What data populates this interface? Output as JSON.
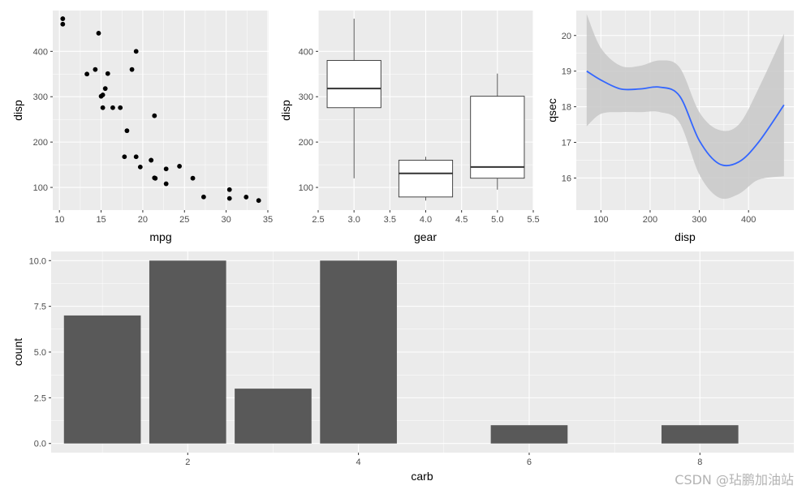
{
  "panel_bg": "#ebebeb",
  "grid_color": "#ffffff",
  "watermark": "CSDN @玷鹏加油站",
  "chart_data": [
    {
      "type": "scatter",
      "xlabel": "mpg",
      "ylabel": "disp",
      "xlim": [
        9.2,
        35.1
      ],
      "ylim": [
        50,
        490
      ],
      "xticks": [
        10,
        15,
        20,
        25,
        30,
        35
      ],
      "yticks": [
        100,
        200,
        300,
        400
      ],
      "point_color": "#000000",
      "points": [
        {
          "x": 21.0,
          "y": 160
        },
        {
          "x": 21.0,
          "y": 160
        },
        {
          "x": 22.8,
          "y": 108
        },
        {
          "x": 21.4,
          "y": 258
        },
        {
          "x": 18.7,
          "y": 360
        },
        {
          "x": 18.1,
          "y": 225
        },
        {
          "x": 14.3,
          "y": 360
        },
        {
          "x": 24.4,
          "y": 146.7
        },
        {
          "x": 22.8,
          "y": 140.8
        },
        {
          "x": 19.2,
          "y": 167.6
        },
        {
          "x": 17.8,
          "y": 167.6
        },
        {
          "x": 16.4,
          "y": 275.8
        },
        {
          "x": 17.3,
          "y": 275.8
        },
        {
          "x": 15.2,
          "y": 275.8
        },
        {
          "x": 10.4,
          "y": 472
        },
        {
          "x": 10.4,
          "y": 460
        },
        {
          "x": 14.7,
          "y": 440
        },
        {
          "x": 32.4,
          "y": 78.7
        },
        {
          "x": 30.4,
          "y": 75.7
        },
        {
          "x": 33.9,
          "y": 71.1
        },
        {
          "x": 21.5,
          "y": 120.1
        },
        {
          "x": 15.5,
          "y": 318
        },
        {
          "x": 15.2,
          "y": 304
        },
        {
          "x": 13.3,
          "y": 350
        },
        {
          "x": 19.2,
          "y": 400
        },
        {
          "x": 27.3,
          "y": 79
        },
        {
          "x": 26.0,
          "y": 120.3
        },
        {
          "x": 30.4,
          "y": 95.1
        },
        {
          "x": 15.8,
          "y": 351
        },
        {
          "x": 19.7,
          "y": 145
        },
        {
          "x": 15.0,
          "y": 301
        },
        {
          "x": 21.4,
          "y": 121
        }
      ]
    },
    {
      "type": "box",
      "xlabel": "gear",
      "ylabel": "disp",
      "xlim": [
        2.5,
        5.5
      ],
      "ylim": [
        50,
        490
      ],
      "xticks": [
        "2.5",
        "3.0",
        "3.5",
        "4.0",
        "4.5",
        "5.0",
        "5.5"
      ],
      "yticks": [
        100,
        200,
        300,
        400
      ],
      "box_width": 0.75,
      "boxes": [
        {
          "x": 3,
          "min": 120.1,
          "q1": 275.8,
          "median": 318,
          "q3": 380,
          "max": 472
        },
        {
          "x": 4,
          "min": 71.1,
          "q1": 78.9,
          "median": 130.9,
          "q3": 160,
          "max": 167.6
        },
        {
          "x": 5,
          "min": 95.1,
          "q1": 120.3,
          "median": 145,
          "q3": 301,
          "max": 351
        }
      ]
    },
    {
      "type": "line",
      "subtype": "smooth-with-confidence-band",
      "xlabel": "disp",
      "ylabel": "qsec",
      "xlim": [
        50,
        492
      ],
      "ylim": [
        15.1,
        20.7
      ],
      "xticks": [
        100,
        200,
        300,
        400
      ],
      "yticks": [
        16,
        17,
        18,
        19,
        20
      ],
      "line_color": "#3366ff",
      "band_color": "#c8c8c8",
      "x": [
        71.1,
        100,
        140,
        180,
        220,
        260,
        300,
        340,
        380,
        420,
        472
      ],
      "y": [
        19.0,
        18.75,
        18.5,
        18.5,
        18.55,
        18.3,
        17.05,
        16.4,
        16.45,
        17.0,
        18.05
      ],
      "lower": [
        17.45,
        17.8,
        17.85,
        17.85,
        17.85,
        17.55,
        16.1,
        15.45,
        15.55,
        15.95,
        16.05
      ],
      "upper": [
        20.6,
        19.65,
        19.15,
        19.15,
        19.3,
        19.1,
        17.85,
        17.35,
        17.5,
        18.5,
        20.05
      ]
    },
    {
      "type": "bar",
      "xlabel": "carb",
      "ylabel": "count",
      "xlim": [
        0.4,
        9.1
      ],
      "ylim": [
        -0.5,
        10.5
      ],
      "xticks": [
        2,
        4,
        6,
        8
      ],
      "yticks": [
        "0.0",
        "2.5",
        "5.0",
        "7.5",
        "10.0"
      ],
      "bar_color": "#595959",
      "bar_width": 0.9,
      "categories": [
        1,
        2,
        3,
        4,
        6,
        8
      ],
      "values": [
        7,
        10,
        3,
        10,
        1,
        1
      ]
    }
  ]
}
